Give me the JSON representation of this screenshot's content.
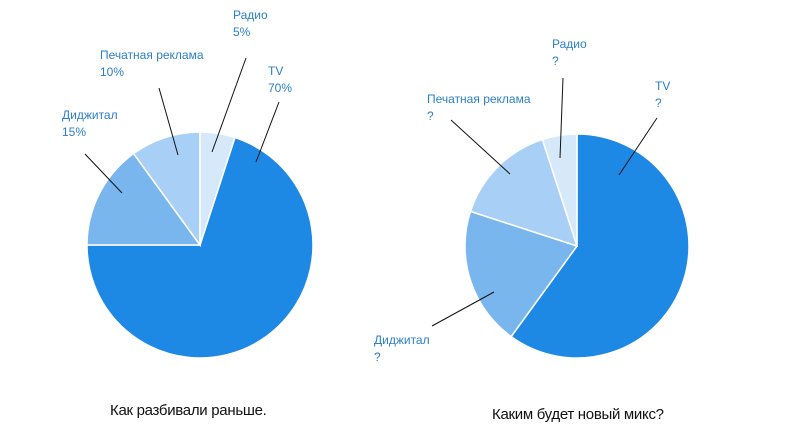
{
  "chart_data": [
    {
      "type": "pie",
      "caption": "Как разбивали раньше.",
      "slices": [
        {
          "name": "TV",
          "value": 70,
          "value_label": "70%",
          "color": "#1e88e5"
        },
        {
          "name": "Диджитал",
          "value": 15,
          "value_label": "15%",
          "color": "#7ab6ee"
        },
        {
          "name": "Печатная реклама",
          "value": 10,
          "value_label": "10%",
          "color": "#a8cff5"
        },
        {
          "name": "Радио",
          "value": 5,
          "value_label": "5%",
          "color": "#d6e9fb"
        }
      ]
    },
    {
      "type": "pie",
      "caption": "Каким будет новый микс?",
      "slices": [
        {
          "name": "TV",
          "value": 60,
          "value_label": "?",
          "color": "#1e88e5"
        },
        {
          "name": "Диджитал",
          "value": 20,
          "value_label": "?",
          "color": "#7ab6ee"
        },
        {
          "name": "Печатная реклама",
          "value": 15,
          "value_label": "?",
          "color": "#a8cff5"
        },
        {
          "name": "Радио",
          "value": 5,
          "value_label": "?",
          "color": "#d6e9fb"
        }
      ]
    }
  ],
  "label_color": "#2a7fc9"
}
